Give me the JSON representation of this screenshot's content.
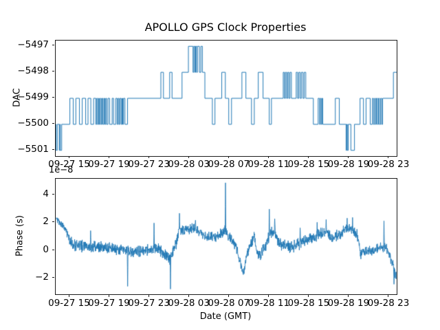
{
  "figure": {
    "title": "APOLLO GPS Clock Properties",
    "background_color": "#ffffff",
    "line_color": "#1f77b4",
    "spine_color": "#1a1a1a"
  },
  "chart_data": [
    {
      "type": "step",
      "name": "dac-vs-time",
      "title": "APOLLO GPS Clock Properties",
      "ylabel": "DAC",
      "xlabel": "",
      "x_unit": "hours from trace start (GMT dates shown on ticks)",
      "xlim": [
        0,
        34.17
      ],
      "ylim": [
        -5501.22,
        -5496.78
      ],
      "yticks": [
        -5497,
        -5498,
        -5499,
        -5500,
        -5501
      ],
      "yticklabels": [
        "−5497",
        "−5498",
        "−5499",
        "−5500",
        "−5501"
      ],
      "xticks": [
        1.41,
        5.41,
        9.41,
        13.41,
        17.41,
        21.41,
        25.41,
        29.41,
        33.41
      ],
      "xticklabels": [
        "09-27 15",
        "09-27 19",
        "09-27 23",
        "09-28 03",
        "09-28 07",
        "09-28 11",
        "09-28 15",
        "09-28 19",
        "09-28 23"
      ],
      "grid": false,
      "legend": null,
      "steps": [
        [
          0.0,
          -5500
        ],
        [
          0.04,
          -5501
        ],
        [
          0.16,
          -5500
        ],
        [
          0.36,
          -5501
        ],
        [
          0.42,
          -5500
        ],
        [
          0.46,
          -5501
        ],
        [
          0.6,
          -5500
        ],
        [
          1.42,
          -5499
        ],
        [
          1.76,
          -5500
        ],
        [
          2.02,
          -5499
        ],
        [
          2.38,
          -5500
        ],
        [
          2.66,
          -5499
        ],
        [
          3.0,
          -5500
        ],
        [
          3.24,
          -5499
        ],
        [
          3.52,
          -5500
        ],
        [
          3.8,
          -5499
        ],
        [
          4.02,
          -5500
        ],
        [
          4.12,
          -5499
        ],
        [
          4.2,
          -5500
        ],
        [
          4.3,
          -5499
        ],
        [
          4.38,
          -5500
        ],
        [
          4.48,
          -5499
        ],
        [
          4.56,
          -5500
        ],
        [
          4.66,
          -5499
        ],
        [
          4.74,
          -5500
        ],
        [
          4.84,
          -5499
        ],
        [
          4.92,
          -5500
        ],
        [
          5.02,
          -5499
        ],
        [
          5.1,
          -5500
        ],
        [
          5.24,
          -5499
        ],
        [
          5.4,
          -5500
        ],
        [
          5.66,
          -5499
        ],
        [
          5.8,
          -5500
        ],
        [
          6.02,
          -5499
        ],
        [
          6.16,
          -5500
        ],
        [
          6.26,
          -5499
        ],
        [
          6.34,
          -5500
        ],
        [
          6.44,
          -5499
        ],
        [
          6.56,
          -5500
        ],
        [
          6.66,
          -5499
        ],
        [
          6.72,
          -5500
        ],
        [
          6.8,
          -5499
        ],
        [
          6.94,
          -5500
        ],
        [
          7.2,
          -5499
        ],
        [
          10.54,
          -5498
        ],
        [
          10.8,
          -5499
        ],
        [
          11.42,
          -5498
        ],
        [
          11.66,
          -5499
        ],
        [
          12.66,
          -5498
        ],
        [
          13.3,
          -5497
        ],
        [
          13.76,
          -5498
        ],
        [
          13.84,
          -5497
        ],
        [
          13.94,
          -5498
        ],
        [
          14.02,
          -5497
        ],
        [
          14.12,
          -5498
        ],
        [
          14.2,
          -5497
        ],
        [
          14.4,
          -5498
        ],
        [
          14.55,
          -5497
        ],
        [
          14.7,
          -5498
        ],
        [
          14.95,
          -5499
        ],
        [
          15.7,
          -5500
        ],
        [
          15.96,
          -5499
        ],
        [
          16.64,
          -5498
        ],
        [
          17.0,
          -5499
        ],
        [
          17.34,
          -5500
        ],
        [
          17.62,
          -5499
        ],
        [
          18.66,
          -5498
        ],
        [
          19.06,
          -5499
        ],
        [
          19.62,
          -5500
        ],
        [
          19.9,
          -5499
        ],
        [
          20.3,
          -5498
        ],
        [
          20.78,
          -5499
        ],
        [
          21.4,
          -5500
        ],
        [
          21.62,
          -5499
        ],
        [
          22.8,
          -5498
        ],
        [
          22.92,
          -5499
        ],
        [
          23.02,
          -5498
        ],
        [
          23.14,
          -5499
        ],
        [
          23.24,
          -5498
        ],
        [
          23.36,
          -5499
        ],
        [
          23.48,
          -5498
        ],
        [
          23.62,
          -5499
        ],
        [
          24.1,
          -5498
        ],
        [
          24.24,
          -5499
        ],
        [
          24.36,
          -5498
        ],
        [
          24.5,
          -5499
        ],
        [
          24.62,
          -5498
        ],
        [
          24.78,
          -5499
        ],
        [
          24.9,
          -5498
        ],
        [
          25.06,
          -5499
        ],
        [
          25.82,
          -5500
        ],
        [
          26.3,
          -5499
        ],
        [
          26.44,
          -5500
        ],
        [
          26.52,
          -5499
        ],
        [
          26.6,
          -5500
        ],
        [
          26.68,
          -5499
        ],
        [
          26.76,
          -5500
        ],
        [
          28.02,
          -5499
        ],
        [
          28.42,
          -5500
        ],
        [
          29.1,
          -5501
        ],
        [
          29.16,
          -5500
        ],
        [
          29.22,
          -5501
        ],
        [
          29.32,
          -5500
        ],
        [
          29.58,
          -5501
        ],
        [
          29.94,
          -5500
        ],
        [
          30.5,
          -5499
        ],
        [
          30.84,
          -5500
        ],
        [
          31.1,
          -5499
        ],
        [
          31.52,
          -5500
        ],
        [
          31.74,
          -5499
        ],
        [
          31.84,
          -5500
        ],
        [
          31.96,
          -5499
        ],
        [
          32.04,
          -5500
        ],
        [
          32.14,
          -5499
        ],
        [
          32.24,
          -5500
        ],
        [
          32.34,
          -5499
        ],
        [
          32.44,
          -5500
        ],
        [
          32.56,
          -5499
        ],
        [
          32.66,
          -5500
        ],
        [
          32.76,
          -5499
        ],
        [
          33.84,
          -5498
        ]
      ]
    },
    {
      "type": "line",
      "name": "phase-vs-time",
      "ylabel": "Phase (s)",
      "xlabel": "Date (GMT)",
      "offset_text": "1e−8",
      "y_scale_factor": 1e-08,
      "xlim": [
        0,
        34.17
      ],
      "ylim": [
        -3.17,
        5.13
      ],
      "yticks": [
        4,
        2,
        0,
        -2
      ],
      "yticklabels": [
        "4",
        "2",
        "0",
        "−2"
      ],
      "xticks": [
        1.41,
        5.41,
        9.41,
        13.41,
        17.41,
        21.41,
        25.41,
        29.41,
        33.41
      ],
      "xticklabels": [
        "09-27 15",
        "09-27 19",
        "09-27 23",
        "09-28 03",
        "09-28 07",
        "09-28 11",
        "09-28 15",
        "09-28 19",
        "09-28 23"
      ],
      "grid": false,
      "legend": null,
      "n_points": 1700,
      "noise_seed": 20170927,
      "mean_keypoints": [
        [
          0.07,
          2.25,
          0.22
        ],
        [
          0.5,
          1.85,
          0.28
        ],
        [
          1.0,
          1.5,
          0.3
        ],
        [
          1.4,
          0.7,
          0.35
        ],
        [
          1.9,
          0.35,
          0.45
        ],
        [
          3.0,
          0.25,
          0.42
        ],
        [
          4.5,
          0.25,
          0.42
        ],
        [
          6.0,
          0.1,
          0.42
        ],
        [
          7.0,
          -0.05,
          0.4
        ],
        [
          7.8,
          -0.2,
          0.45
        ],
        [
          8.6,
          -0.1,
          0.45
        ],
        [
          9.4,
          0.05,
          0.35
        ],
        [
          10.0,
          0.15,
          0.4
        ],
        [
          10.8,
          -0.2,
          0.5
        ],
        [
          11.4,
          -0.7,
          0.6
        ],
        [
          11.7,
          -0.2,
          0.45
        ],
        [
          12.1,
          0.6,
          0.5
        ],
        [
          12.5,
          1.5,
          0.45
        ],
        [
          13.2,
          1.45,
          0.4
        ],
        [
          13.9,
          1.6,
          0.35
        ],
        [
          14.6,
          1.15,
          0.3
        ],
        [
          15.3,
          0.95,
          0.35
        ],
        [
          16.0,
          1.0,
          0.4
        ],
        [
          16.6,
          1.15,
          0.45
        ],
        [
          17.0,
          1.5,
          0.5
        ],
        [
          17.4,
          0.9,
          0.4
        ],
        [
          18.0,
          0.4,
          0.4
        ],
        [
          18.5,
          -0.9,
          0.5
        ],
        [
          18.85,
          -1.7,
          0.35
        ],
        [
          19.2,
          -0.2,
          0.4
        ],
        [
          19.9,
          1.0,
          0.35
        ],
        [
          20.3,
          -0.5,
          0.45
        ],
        [
          20.7,
          -0.1,
          0.4
        ],
        [
          21.2,
          0.6,
          0.45
        ],
        [
          21.45,
          1.3,
          0.5
        ],
        [
          21.9,
          1.3,
          0.45
        ],
        [
          22.3,
          0.55,
          0.45
        ],
        [
          23.0,
          0.3,
          0.45
        ],
        [
          24.0,
          0.3,
          0.45
        ],
        [
          24.8,
          0.65,
          0.45
        ],
        [
          25.6,
          0.8,
          0.45
        ],
        [
          26.4,
          1.1,
          0.45
        ],
        [
          27.1,
          1.35,
          0.4
        ],
        [
          27.7,
          0.85,
          0.4
        ],
        [
          28.4,
          1.1,
          0.4
        ],
        [
          29.1,
          1.5,
          0.4
        ],
        [
          29.8,
          1.45,
          0.4
        ],
        [
          30.2,
          1.2,
          0.4
        ],
        [
          30.55,
          -0.3,
          0.4
        ],
        [
          31.2,
          -0.05,
          0.35
        ],
        [
          32.0,
          0.05,
          0.35
        ],
        [
          32.7,
          0.25,
          0.4
        ],
        [
          33.1,
          0.25,
          0.4
        ],
        [
          33.6,
          -0.6,
          0.4
        ],
        [
          34.1,
          -1.9,
          0.3
        ]
      ],
      "spikes": [
        [
          3.5,
          1.4
        ],
        [
          7.2,
          -2.6
        ],
        [
          9.85,
          1.95
        ],
        [
          11.5,
          -2.8
        ],
        [
          12.4,
          2.65
        ],
        [
          14.0,
          2.15
        ],
        [
          17.02,
          4.84
        ],
        [
          21.4,
          2.95
        ],
        [
          21.95,
          2.25
        ],
        [
          24.5,
          1.6
        ],
        [
          26.2,
          2.0
        ],
        [
          27.1,
          2.2
        ],
        [
          29.2,
          2.3
        ],
        [
          29.75,
          2.35
        ],
        [
          32.9,
          2.1
        ],
        [
          33.9,
          -2.45
        ]
      ]
    }
  ]
}
